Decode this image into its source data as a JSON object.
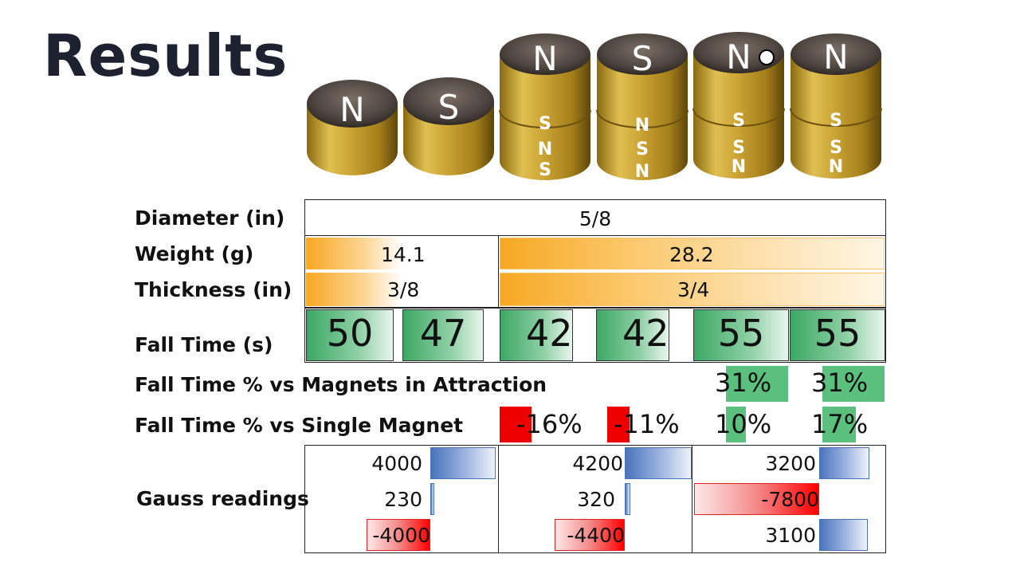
{
  "title": "Results",
  "magnets": [
    {
      "top": "N"
    },
    {
      "top": "S"
    },
    {
      "top": "N",
      "side": [
        "S",
        "N",
        "S"
      ]
    },
    {
      "top": "S",
      "side": [
        "N",
        "S",
        "N"
      ]
    },
    {
      "top": "N",
      "side": [
        "S",
        "S",
        "N"
      ]
    },
    {
      "top": "N",
      "side": [
        "S",
        "S",
        "N"
      ]
    }
  ],
  "rows": {
    "diameter": {
      "label": "Diameter (in)",
      "value": "5/8"
    },
    "weight": {
      "label": "Weight (g)",
      "single": "14.1",
      "double": "28.2"
    },
    "thickness": {
      "label": "Thickness (in)",
      "single": "3/8",
      "double": "3/4"
    },
    "fall_time": {
      "label": "Fall Time (s)",
      "values": [
        "50",
        "47",
        "42",
        "42",
        "55",
        "55"
      ]
    },
    "pct_attraction": {
      "label": "Fall Time % vs Magnets in Attraction",
      "values": [
        "31%",
        "31%"
      ]
    },
    "pct_single": {
      "label": "Fall Time % vs Single Magnet",
      "values": [
        "-16%",
        "-11%",
        "10%",
        "17%"
      ]
    },
    "gauss": {
      "label": "Gauss readings",
      "groups": [
        [
          "4000",
          "230",
          "-4000"
        ],
        [
          "4200",
          "320",
          "-4400"
        ],
        [
          "3200",
          "-7800",
          "3100"
        ]
      ]
    }
  },
  "colors": {
    "positive": "#3ca865",
    "negative": "#ff0000",
    "gauss_positive": "#4a73bc",
    "bar": "#f7a823"
  }
}
